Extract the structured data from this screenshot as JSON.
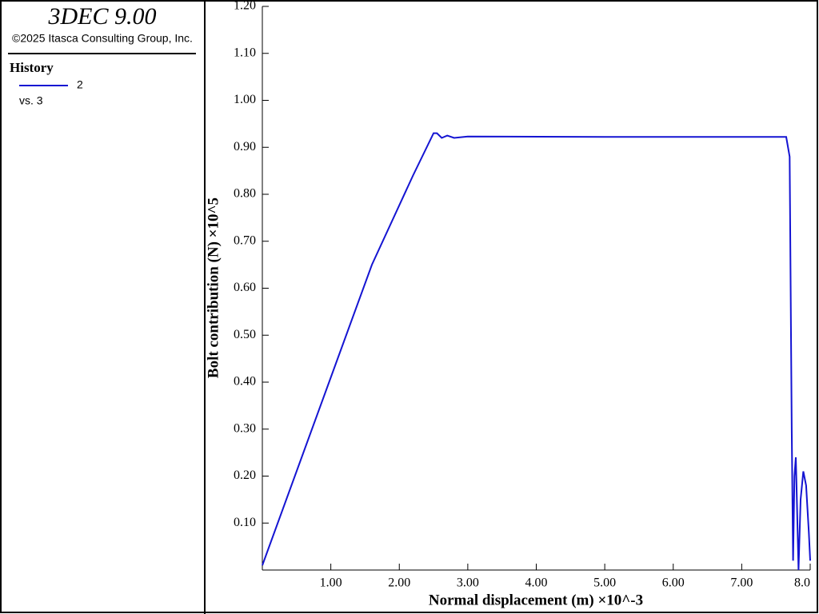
{
  "chart_data": {
    "type": "line",
    "title": "3DEC 9.00",
    "subtitle": "©2025 Itasca Consulting Group, Inc.",
    "legend_title": "History",
    "legend_note": "vs. 3",
    "x_label": "Normal displacement (m) ×10^-3",
    "y_label": "Bolt contribution (N) ×10^5",
    "x": [
      0,
      1.0,
      1.6,
      2.2,
      2.5,
      2.55,
      2.62,
      2.7,
      2.8,
      3.0,
      5.0,
      7.65,
      7.7,
      7.73,
      7.75,
      7.77,
      7.79,
      7.8,
      7.83,
      7.86,
      7.9,
      7.94,
      7.98,
      8.0
    ],
    "series": [
      {
        "name": "2",
        "color": "#1414d2",
        "values": [
          0.01,
          0.41,
          0.65,
          0.84,
          0.93,
          0.93,
          0.92,
          0.925,
          0.92,
          0.923,
          0.922,
          0.922,
          0.88,
          0.3,
          0.02,
          0.2,
          0.24,
          0.18,
          0.0,
          0.15,
          0.21,
          0.18,
          0.08,
          0.02
        ]
      }
    ],
    "xlim": [
      0,
      8
    ],
    "ylim": [
      0,
      1.2
    ],
    "xticks": [
      {
        "value": 1,
        "label": "1.00"
      },
      {
        "value": 2,
        "label": "2.00"
      },
      {
        "value": 3,
        "label": "3.00"
      },
      {
        "value": 4,
        "label": "4.00"
      },
      {
        "value": 5,
        "label": "5.00"
      },
      {
        "value": 6,
        "label": "6.00"
      },
      {
        "value": 7,
        "label": "7.00"
      },
      {
        "value": 8,
        "label": "8.0"
      }
    ],
    "yticks": [
      {
        "value": 0.1,
        "label": "0.10"
      },
      {
        "value": 0.2,
        "label": "0.20"
      },
      {
        "value": 0.3,
        "label": "0.30"
      },
      {
        "value": 0.4,
        "label": "0.40"
      },
      {
        "value": 0.5,
        "label": "0.50"
      },
      {
        "value": 0.6,
        "label": "0.60"
      },
      {
        "value": 0.7,
        "label": "0.70"
      },
      {
        "value": 0.8,
        "label": "0.80"
      },
      {
        "value": 0.9,
        "label": "0.90"
      },
      {
        "value": 1.0,
        "label": "1.00"
      },
      {
        "value": 1.1,
        "label": "1.10"
      },
      {
        "value": 1.2,
        "label": "1.20"
      }
    ]
  }
}
